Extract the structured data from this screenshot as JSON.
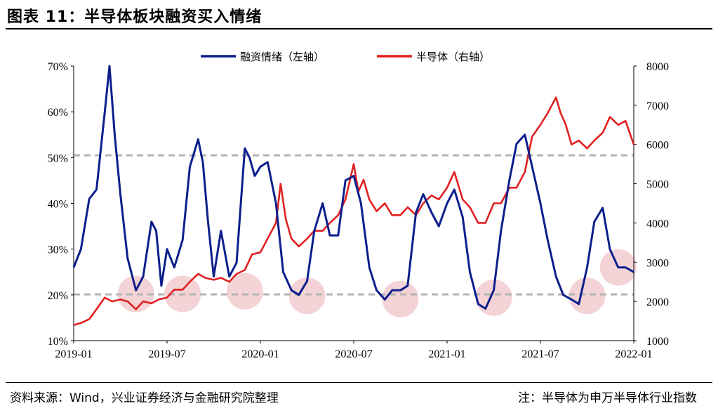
{
  "header": {
    "title": "图表 11：半导体板块融资买入情绪"
  },
  "footer": {
    "source": "资料来源：Wind，兴业证券经济与金融研究院整理",
    "note": "注：半导体为申万半导体行业指数"
  },
  "chart_data": {
    "type": "line",
    "xlabel": "",
    "x_ticks": [
      "2019-01",
      "2019-07",
      "2020-01",
      "2020-07",
      "2021-01",
      "2021-07",
      "2022-01"
    ],
    "y_left_ticks": [
      "10%",
      "20%",
      "30%",
      "40%",
      "50%",
      "60%",
      "70%"
    ],
    "y_right_ticks": [
      "1000",
      "2000",
      "3000",
      "4000",
      "5000",
      "6000",
      "7000",
      "8000"
    ],
    "ylim_left": [
      10,
      70
    ],
    "ylim_right": [
      1000,
      8000
    ],
    "xlim": [
      "2019-01",
      "2022-01"
    ],
    "legend_position": "top-center",
    "reference_lines_left_pct": [
      50.5,
      20.1
    ],
    "colors": {
      "financing": "#0d1f8c",
      "semiconductor": "#e02020",
      "reference": "#b4b4b4",
      "circle": "#f0c4c8"
    },
    "highlight_points": [
      {
        "date": "2019-05",
        "value_pct": 20.2
      },
      {
        "date": "2019-08",
        "value_pct": 20.2
      },
      {
        "date": "2019-12",
        "value_pct": 20.8
      },
      {
        "date": "2020-04",
        "value_pct": 19.8
      },
      {
        "date": "2020-10",
        "value_pct": 19.1
      },
      {
        "date": "2021-04",
        "value_pct": 19.4
      },
      {
        "date": "2021-10",
        "value_pct": 19.8
      },
      {
        "date": "2021-12",
        "value_pct": 26.0
      }
    ],
    "series": [
      {
        "name": "融资情绪（左轴）",
        "axis": "left",
        "unit": "%",
        "x": [
          "2019-01",
          "2019-01-15",
          "2019-02",
          "2019-02-15",
          "2019-03",
          "2019-03-10",
          "2019-03-20",
          "2019-04",
          "2019-04-15",
          "2019-05",
          "2019-05-15",
          "2019-06",
          "2019-06-10",
          "2019-06-20",
          "2019-07",
          "2019-07-15",
          "2019-08",
          "2019-08-15",
          "2019-09",
          "2019-09-10",
          "2019-09-20",
          "2019-10",
          "2019-10-15",
          "2019-11",
          "2019-11-15",
          "2019-12",
          "2019-12-10",
          "2019-12-20",
          "2020-01",
          "2020-01-15",
          "2020-02",
          "2020-02-15",
          "2020-03",
          "2020-03-15",
          "2020-04",
          "2020-04-15",
          "2020-05",
          "2020-05-15",
          "2020-06",
          "2020-06-15",
          "2020-07",
          "2020-07-15",
          "2020-08",
          "2020-08-15",
          "2020-09",
          "2020-09-15",
          "2020-10",
          "2020-10-15",
          "2020-11",
          "2020-11-15",
          "2020-12",
          "2020-12-15",
          "2021-01",
          "2021-01-15",
          "2021-02",
          "2021-02-15",
          "2021-03",
          "2021-03-15",
          "2021-04",
          "2021-04-15",
          "2021-05",
          "2021-05-15",
          "2021-06",
          "2021-06-15",
          "2021-07",
          "2021-07-15",
          "2021-08",
          "2021-08-15",
          "2021-09",
          "2021-09-15",
          "2021-10",
          "2021-10-15",
          "2021-11",
          "2021-11-15",
          "2021-12",
          "2021-12-15",
          "2022-01"
        ],
        "values": [
          26,
          30,
          41,
          43,
          60,
          70,
          55,
          42,
          28,
          21,
          24,
          36,
          34,
          22,
          30,
          26,
          32,
          48,
          54,
          49,
          36,
          24,
          34,
          24,
          27,
          52,
          50,
          46,
          48,
          49,
          40,
          25,
          21,
          20,
          23,
          34,
          40,
          33,
          33,
          45,
          46,
          40,
          26,
          21,
          19,
          21,
          21,
          22,
          38,
          42,
          38,
          35,
          40,
          43,
          37,
          25,
          18,
          17,
          21,
          34,
          45,
          53,
          55,
          48,
          40,
          32,
          24,
          20,
          19,
          18,
          26,
          36,
          39,
          30,
          26,
          26,
          25
        ],
        "values_note": "see x"
      },
      {
        "name": "半导体（右轴）",
        "axis": "right",
        "unit": "index",
        "x": [
          "2019-01",
          "2019-01-15",
          "2019-02",
          "2019-02-15",
          "2019-03",
          "2019-03-15",
          "2019-04",
          "2019-04-15",
          "2019-05",
          "2019-05-15",
          "2019-06",
          "2019-06-15",
          "2019-07",
          "2019-07-15",
          "2019-08",
          "2019-08-15",
          "2019-09",
          "2019-09-15",
          "2019-10",
          "2019-10-15",
          "2019-11",
          "2019-11-15",
          "2019-12",
          "2019-12-15",
          "2020-01",
          "2020-01-15",
          "2020-02",
          "2020-02-10",
          "2020-02-20",
          "2020-03",
          "2020-03-15",
          "2020-04",
          "2020-04-15",
          "2020-05",
          "2020-05-15",
          "2020-06",
          "2020-06-15",
          "2020-07",
          "2020-07-10",
          "2020-07-20",
          "2020-08",
          "2020-08-15",
          "2020-09",
          "2020-09-15",
          "2020-10",
          "2020-10-15",
          "2020-11",
          "2020-11-15",
          "2020-12",
          "2020-12-15",
          "2021-01",
          "2021-01-15",
          "2021-02",
          "2021-02-15",
          "2021-03",
          "2021-03-15",
          "2021-04",
          "2021-04-15",
          "2021-05",
          "2021-05-15",
          "2021-06",
          "2021-06-15",
          "2021-07",
          "2021-07-15",
          "2021-08",
          "2021-08-10",
          "2021-08-20",
          "2021-09",
          "2021-09-15",
          "2021-10",
          "2021-10-15",
          "2021-11",
          "2021-11-15",
          "2021-12",
          "2021-12-15",
          "2022-01"
        ],
        "values": [
          1400,
          1450,
          1550,
          1800,
          2100,
          2000,
          2050,
          2000,
          1800,
          2000,
          1950,
          2050,
          2100,
          2300,
          2300,
          2500,
          2700,
          2600,
          2550,
          2600,
          2500,
          2700,
          2800,
          3200,
          3250,
          3600,
          4000,
          5000,
          4100,
          3600,
          3400,
          3600,
          3800,
          3800,
          4000,
          4200,
          4600,
          5500,
          4800,
          5100,
          4600,
          4300,
          4500,
          4200,
          4200,
          4400,
          4200,
          4500,
          4700,
          4600,
          4900,
          5300,
          4600,
          4400,
          4000,
          4000,
          4500,
          4500,
          4900,
          4900,
          5300,
          6200,
          6500,
          6800,
          7200,
          6800,
          6500,
          6000,
          6100,
          5900,
          6100,
          6300,
          6700,
          6500,
          6600,
          6000
        ]
      }
    ]
  }
}
